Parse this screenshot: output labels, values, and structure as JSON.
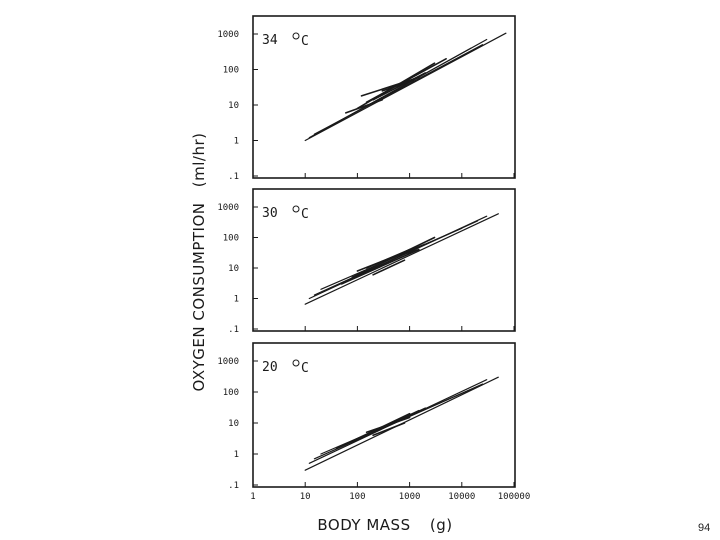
{
  "chart_data": [
    {
      "type": "line",
      "panel_label": "34",
      "unit_label": "C",
      "xscale": "log",
      "yscale": "log",
      "xlim": [
        1,
        100000
      ],
      "ylim": [
        0.1,
        1000
      ],
      "series": [
        {
          "x": [
            10,
            70000
          ],
          "y": [
            1.0,
            1050
          ]
        },
        {
          "x": [
            12,
            30000
          ],
          "y": [
            1.2,
            700
          ]
        },
        {
          "x": [
            15,
            25000
          ],
          "y": [
            1.5,
            500
          ]
        },
        {
          "x": [
            20,
            15000
          ],
          "y": [
            1.8,
            400
          ]
        },
        {
          "x": [
            100,
            3000
          ],
          "y": [
            8,
            150
          ]
        },
        {
          "x": [
            150,
            5000
          ],
          "y": [
            12,
            200
          ]
        },
        {
          "x": [
            200,
            2000
          ],
          "y": [
            14,
            80
          ]
        },
        {
          "x": [
            120,
            1500
          ],
          "y": [
            18,
            60
          ]
        },
        {
          "x": [
            60,
            300
          ],
          "y": [
            6,
            14
          ]
        },
        {
          "x": [
            300,
            1200
          ],
          "y": [
            25,
            50
          ]
        },
        {
          "x": [
            400,
            1000
          ],
          "y": [
            30,
            45
          ]
        }
      ]
    },
    {
      "type": "line",
      "panel_label": "30",
      "unit_label": "C",
      "xscale": "log",
      "yscale": "log",
      "xlim": [
        1,
        100000
      ],
      "ylim": [
        0.1,
        1000
      ],
      "series": [
        {
          "x": [
            10,
            50000
          ],
          "y": [
            0.65,
            600
          ]
        },
        {
          "x": [
            12,
            30000
          ],
          "y": [
            1.0,
            500
          ]
        },
        {
          "x": [
            15,
            20000
          ],
          "y": [
            1.3,
            350
          ]
        },
        {
          "x": [
            20,
            10000
          ],
          "y": [
            2.0,
            200
          ]
        },
        {
          "x": [
            50,
            1500
          ],
          "y": [
            3,
            40
          ]
        },
        {
          "x": [
            80,
            3000
          ],
          "y": [
            5,
            100
          ]
        },
        {
          "x": [
            100,
            2000
          ],
          "y": [
            8,
            60
          ]
        },
        {
          "x": [
            150,
            1000
          ],
          "y": [
            10,
            40
          ]
        },
        {
          "x": [
            200,
            800
          ],
          "y": [
            6,
            18
          ]
        },
        {
          "x": [
            600,
            1500
          ],
          "y": [
            25,
            40
          ]
        }
      ]
    },
    {
      "type": "line",
      "panel_label": "20",
      "unit_label": "C",
      "xscale": "log",
      "yscale": "log",
      "xlim": [
        1,
        100000
      ],
      "ylim": [
        0.1,
        1000
      ],
      "series": [
        {
          "x": [
            10,
            50000
          ],
          "y": [
            0.3,
            300
          ]
        },
        {
          "x": [
            12,
            30000
          ],
          "y": [
            0.5,
            250
          ]
        },
        {
          "x": [
            15,
            25000
          ],
          "y": [
            0.7,
            180
          ]
        },
        {
          "x": [
            20,
            15000
          ],
          "y": [
            1.0,
            120
          ]
        },
        {
          "x": [
            40,
            1000
          ],
          "y": [
            1.5,
            20
          ]
        },
        {
          "x": [
            80,
            2000
          ],
          "y": [
            2.5,
            30
          ]
        },
        {
          "x": [
            100,
            1500
          ],
          "y": [
            3,
            25
          ]
        },
        {
          "x": [
            150,
            1000
          ],
          "y": [
            5,
            15
          ]
        },
        {
          "x": [
            200,
            800
          ],
          "y": [
            4,
            10
          ]
        }
      ]
    }
  ],
  "axes": {
    "y_ticks": [
      ".1",
      "1",
      "10",
      "100",
      "1000"
    ],
    "x_ticks": [
      "1",
      "10",
      "100",
      "1000",
      "10000",
      "100000"
    ],
    "ylabel": "OXYGEN CONSUMPTION",
    "yunit": "(ml/hr)",
    "xlabel": "BODY MASS",
    "xunit": "(g)"
  },
  "page_number": "94",
  "colors": {
    "ink": "#1a1a1a",
    "background": "#ffffff"
  }
}
